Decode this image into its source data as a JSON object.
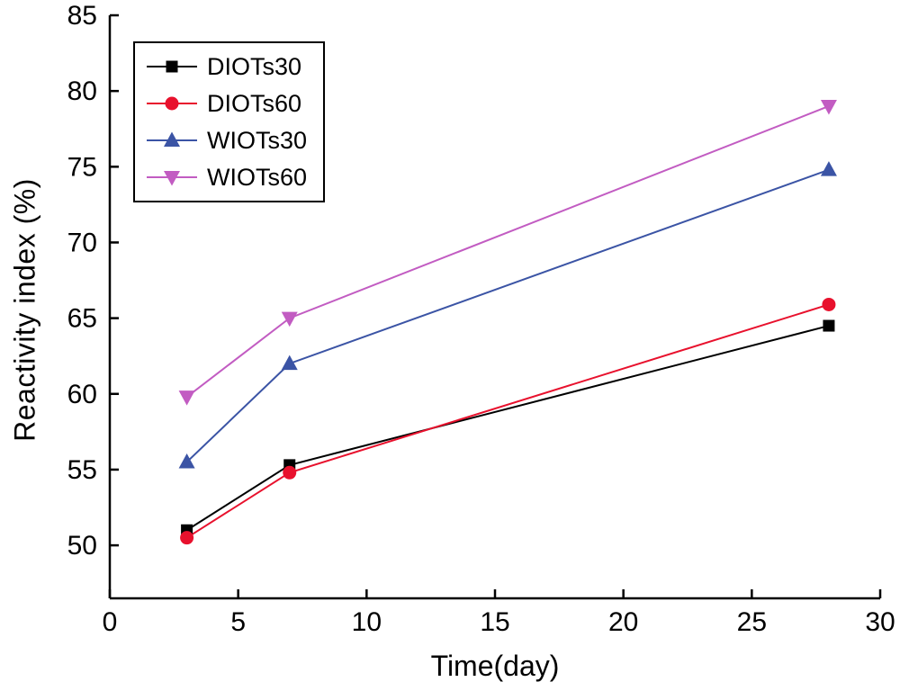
{
  "chart_data": {
    "type": "line",
    "title": "",
    "xlabel": "Time(day)",
    "ylabel": "Reactivity index (%)",
    "x": [
      3,
      7,
      28
    ],
    "xlim": [
      0,
      30
    ],
    "ylim": [
      46.5,
      85
    ],
    "xticks": [
      0,
      5,
      10,
      15,
      20,
      25,
      30
    ],
    "yticks": [
      50,
      55,
      60,
      65,
      70,
      75,
      80,
      85
    ],
    "grid": false,
    "legend_position": "top-left",
    "axis_color": "#000000",
    "series": [
      {
        "name": "DIOTs30",
        "color": "#000000",
        "marker": "square",
        "values": [
          51.0,
          55.3,
          64.5
        ]
      },
      {
        "name": "DIOTs60",
        "color": "#e8112d",
        "marker": "circle",
        "values": [
          50.5,
          54.8,
          65.9
        ]
      },
      {
        "name": "WIOTs30",
        "color": "#3b54a5",
        "marker": "triangle-up",
        "values": [
          55.5,
          62.0,
          74.8
        ]
      },
      {
        "name": "WIOTs60",
        "color": "#c25cc2",
        "marker": "triangle-down",
        "values": [
          59.8,
          65.0,
          79.0
        ]
      }
    ]
  }
}
